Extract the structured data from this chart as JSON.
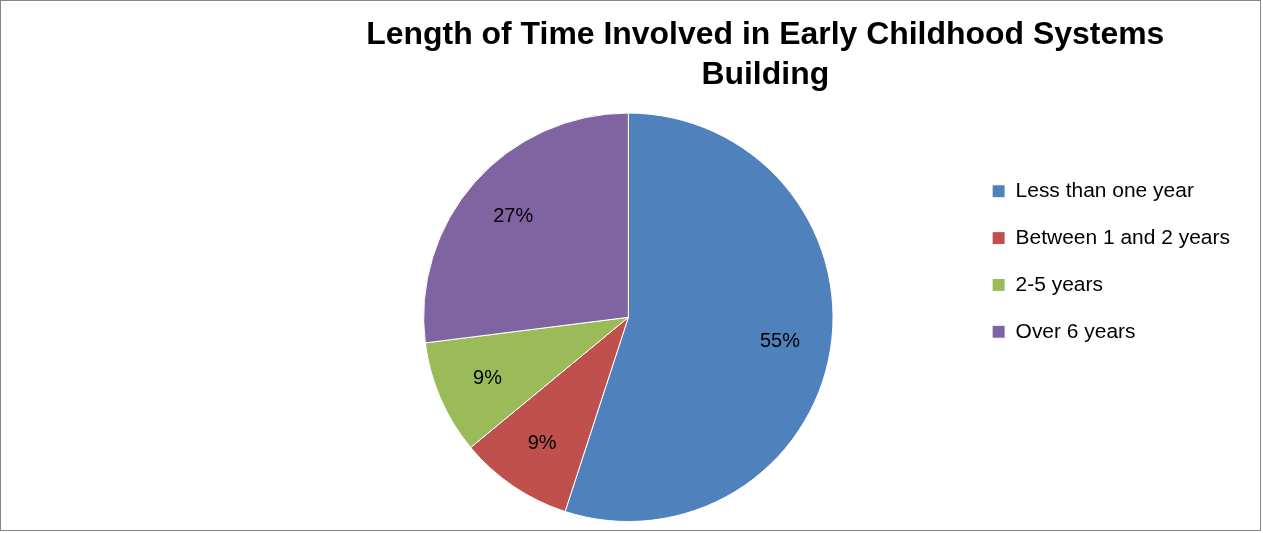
{
  "chart_data": {
    "type": "pie",
    "title": "Length of Time Involved in Early Childhood Systems Building",
    "categories": [
      "Less than one year",
      "Between 1 and 2 years",
      "2-5 years",
      "Over 6 years"
    ],
    "values": [
      55,
      9,
      9,
      27
    ],
    "colors": [
      "#4f81bd",
      "#c0504d",
      "#9bbb59",
      "#8064a2"
    ],
    "value_labels": [
      "55%",
      "9%",
      "9%",
      "27%"
    ],
    "legend": "right"
  }
}
